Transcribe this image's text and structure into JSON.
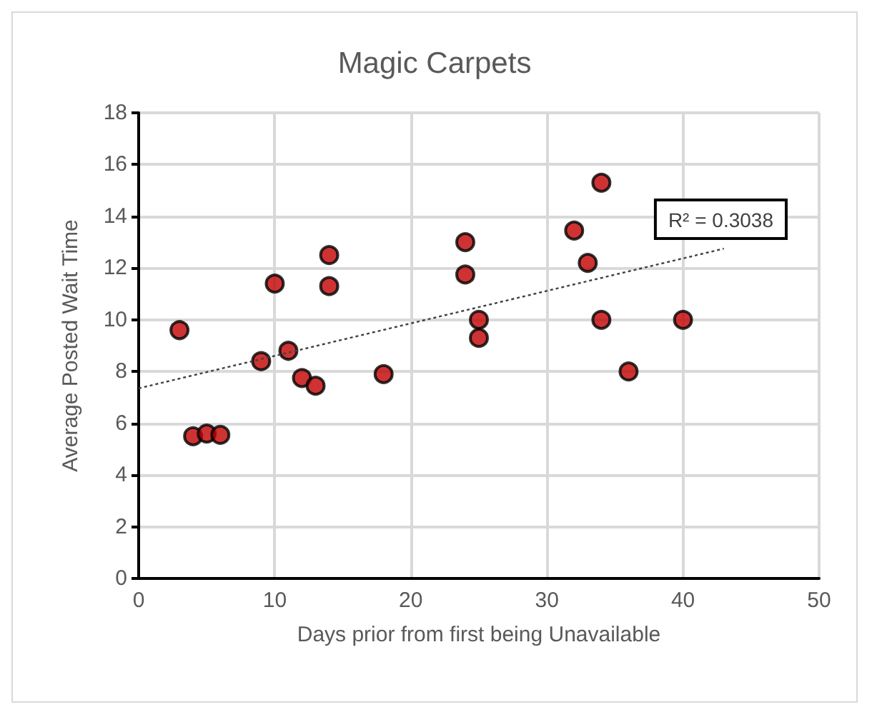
{
  "chart_data": {
    "type": "scatter",
    "title": "Magic Carpets",
    "xlabel": "Days prior from first being Unavailable",
    "ylabel": "Average Posted Wait Time",
    "series": [
      {
        "color": "#c00000",
        "marker": "circle",
        "x": [
          3,
          4,
          5,
          6,
          9,
          10,
          11,
          12,
          13,
          14,
          14,
          18,
          24,
          24,
          25,
          25,
          32,
          33,
          34,
          34,
          36,
          40
        ],
        "values": [
          9.6,
          5.5,
          5.6,
          5.55,
          8.4,
          11.4,
          8.8,
          7.75,
          7.45,
          12.5,
          11.3,
          7.9,
          13.0,
          11.75,
          10.0,
          9.3,
          13.45,
          12.2,
          15.3,
          10.0,
          8.0,
          10.0
        ]
      },
      {
        "type": "line",
        "color": "#404040",
        "line_style": "dotted",
        "marker": "none",
        "x": [
          0,
          43
        ],
        "values": [
          7.35,
          12.75
        ]
      }
    ],
    "annotations": [
      "R² = 0.3038"
    ],
    "grid": true,
    "xlim": [
      0,
      50
    ],
    "xticks": [
      0,
      10,
      20,
      30,
      40,
      50
    ],
    "ylim": [
      0,
      18
    ],
    "yticks": [
      0,
      2,
      4,
      6,
      8,
      10,
      12,
      14,
      16,
      18
    ]
  }
}
